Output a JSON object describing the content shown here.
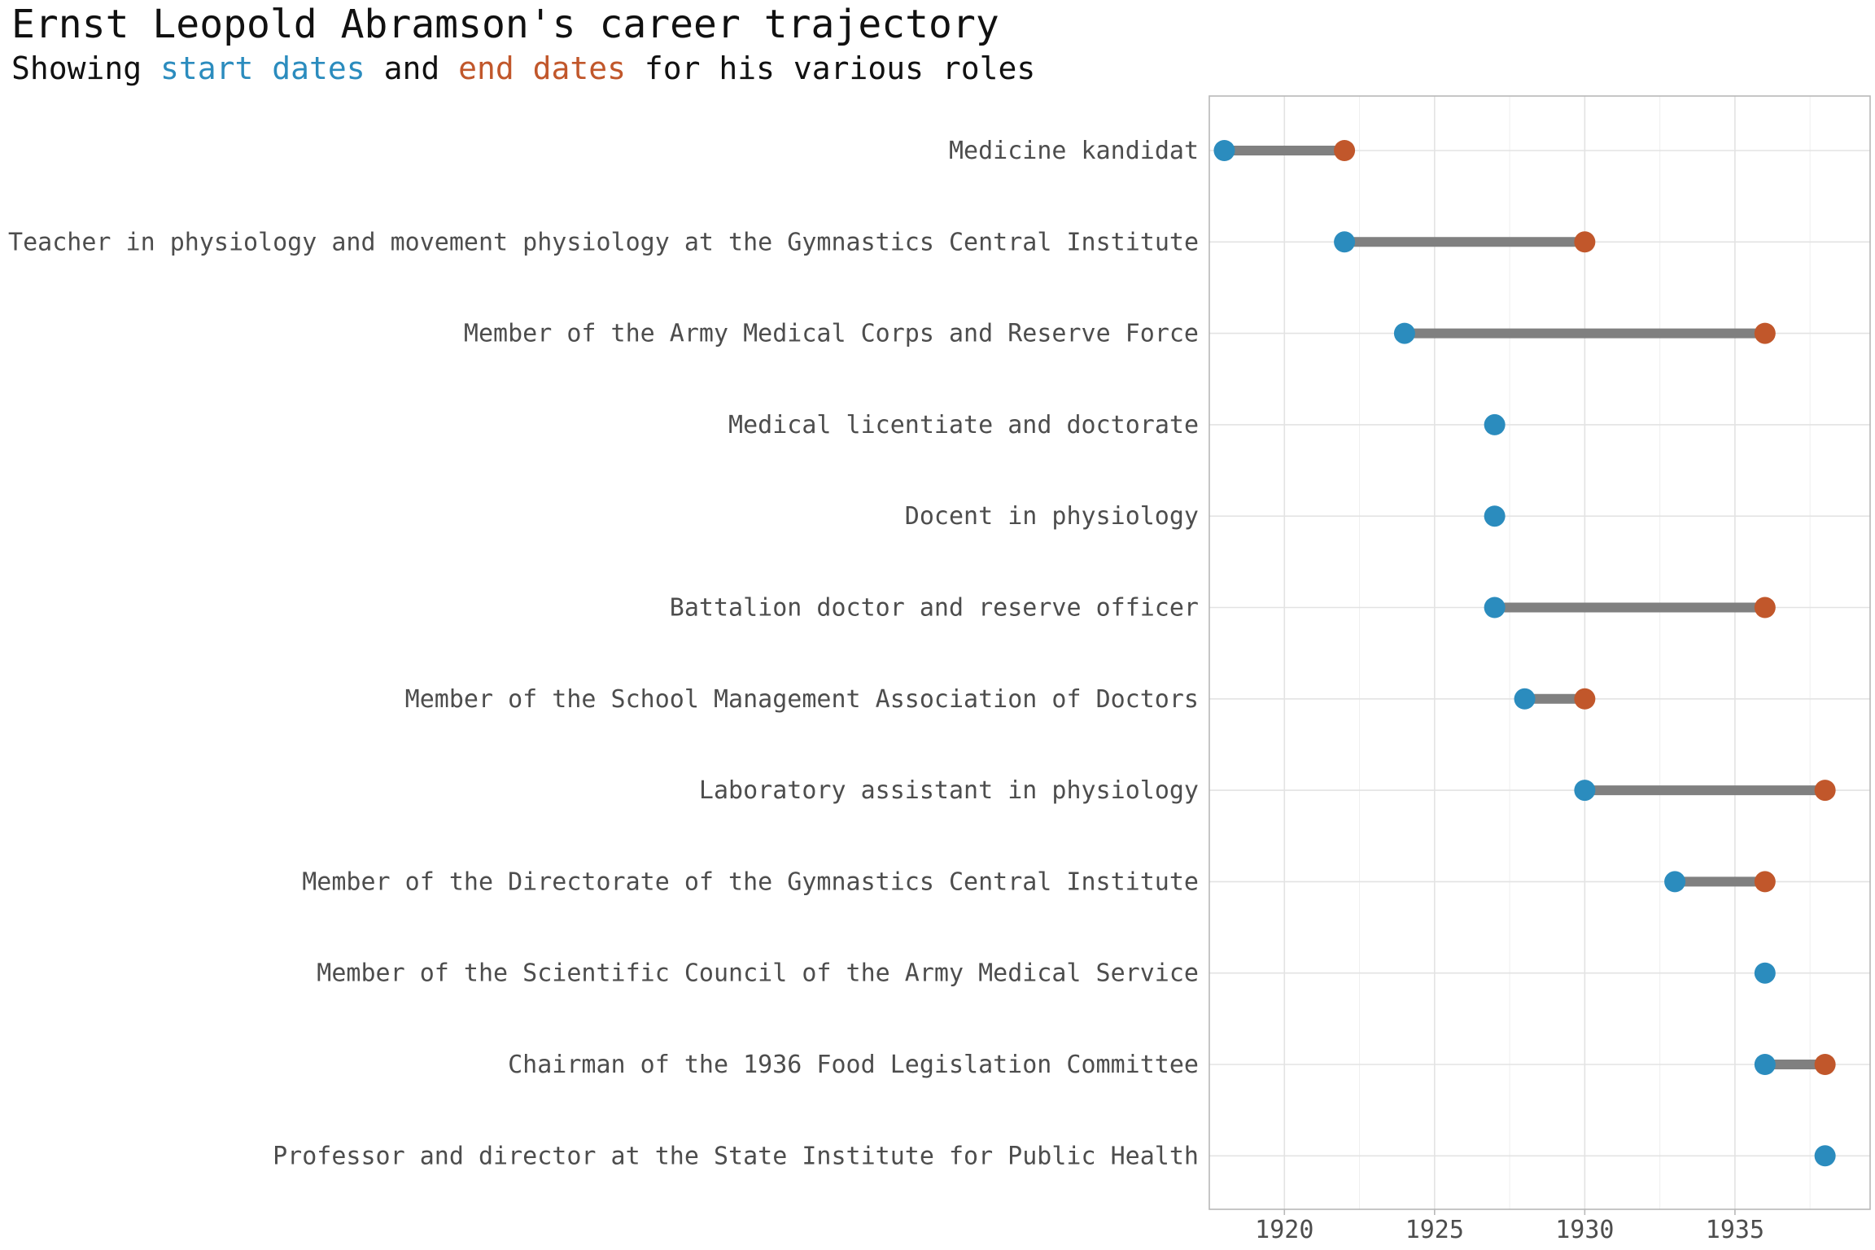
{
  "chart_data": {
    "type": "dumbbell",
    "title": "Ernst Leopold Abramson's career trajectory",
    "subtitle": {
      "parts": [
        {
          "text": "Showing ",
          "color": "#111111"
        },
        {
          "text": "start dates",
          "color": "#2b8cbe"
        },
        {
          "text": " and ",
          "color": "#111111"
        },
        {
          "text": "end dates",
          "color": "#c1572b"
        },
        {
          "text": " for his various roles",
          "color": "#111111"
        }
      ]
    },
    "colors": {
      "start": "#2b8cbe",
      "end": "#c1572b",
      "segment": "#808080"
    },
    "xlim": [
      1917.5,
      1939.5
    ],
    "xticks": [
      1920,
      1925,
      1930,
      1935
    ],
    "grid": true,
    "roles": [
      {
        "label": "Medicine kandidat",
        "start": 1918,
        "end": 1922
      },
      {
        "label": "Teacher in physiology and movement physiology at the Gymnastics Central Institute",
        "start": 1922,
        "end": 1930
      },
      {
        "label": "Member of the Army Medical Corps and Reserve Force",
        "start": 1924,
        "end": 1936
      },
      {
        "label": "Medical licentiate and doctorate",
        "start": 1927,
        "end": null
      },
      {
        "label": "Docent in physiology",
        "start": 1927,
        "end": null
      },
      {
        "label": "Battalion doctor and reserve officer",
        "start": 1927,
        "end": 1936
      },
      {
        "label": "Member of the School Management Association of Doctors",
        "start": 1928,
        "end": 1930
      },
      {
        "label": "Laboratory assistant in physiology",
        "start": 1930,
        "end": 1938
      },
      {
        "label": "Member of the Directorate of the Gymnastics Central Institute",
        "start": 1933,
        "end": 1936
      },
      {
        "label": "Member of the Scientific Council of the Army Medical Service",
        "start": 1936,
        "end": null
      },
      {
        "label": "Chairman of the 1936 Food Legislation Committee",
        "start": 1936,
        "end": 1938
      },
      {
        "label": "Professor and director at the State Institute for Public Health",
        "start": 1938,
        "end": null
      }
    ]
  }
}
